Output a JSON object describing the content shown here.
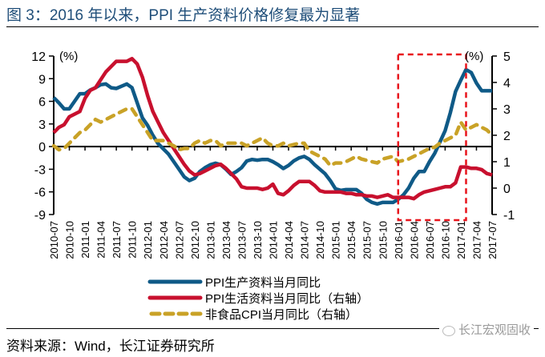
{
  "title": "图 3：2016 年以来，PPI 生产资料价格修复最为显著",
  "source": "资料来源：Wind，长江证券研究所",
  "watermark": "长江宏观固收",
  "colors": {
    "ppi_producer": "#0f5a87",
    "ppi_consumer": "#c8102e",
    "cpi_nonfood": "#c9a227",
    "highlight_box": "#e8141c",
    "title": "#1f4e79"
  },
  "chart_data": {
    "type": "line",
    "title": "图 3：2016 年以来，PPI 生产资料价格修复最为显著",
    "xlabel": "",
    "ylabel_left": "(%)",
    "ylabel_right": "(%)",
    "ylim_left": [
      -9,
      12
    ],
    "ylim_right": [
      -1,
      5
    ],
    "yticks_left": [
      "12",
      "9",
      "6",
      "3",
      "0",
      "-3",
      "-6",
      "-9"
    ],
    "yticks_left_values": [
      12,
      9,
      6,
      3,
      0,
      -3,
      -6,
      -9
    ],
    "yticks_right": [
      "5",
      "4",
      "3",
      "2",
      "1",
      "0",
      "-1"
    ],
    "yticks_right_values": [
      5,
      4,
      3,
      2,
      1,
      0,
      -1
    ],
    "x_start": "2010-07",
    "x_end": "2017-07",
    "x_frequency": "monthly",
    "xtick_labels": [
      "2010-07",
      "2010-10",
      "2011-01",
      "2011-04",
      "2011-07",
      "2011-10",
      "2012-01",
      "2012-04",
      "2012-07",
      "2012-10",
      "2013-01",
      "2013-04",
      "2013-07",
      "2013-10",
      "2014-01",
      "2014-04",
      "2014-07",
      "2014-10",
      "2015-01",
      "2015-04",
      "2015-07",
      "2015-10",
      "2016-01",
      "2016-04",
      "2016-07",
      "2016-10",
      "2017-01",
      "2017-04",
      "2017-07"
    ],
    "highlight_range": [
      "2016-01",
      "2017-02"
    ],
    "legend_position": "bottom",
    "grid": false,
    "series": [
      {
        "name": "PPI生产资料当月同比",
        "axis": "left",
        "style": "solid",
        "values": [
          6.5,
          5.8,
          5.0,
          5.0,
          6.0,
          7.0,
          7.0,
          7.5,
          7.8,
          8.2,
          8.3,
          7.8,
          7.7,
          8.0,
          8.3,
          7.8,
          5.8,
          3.8,
          2.8,
          1.5,
          0.4,
          -0.3,
          -1.0,
          -2.0,
          -3.0,
          -4.0,
          -4.5,
          -4.2,
          -3.3,
          -2.8,
          -2.4,
          -2.2,
          -2.4,
          -3.0,
          -3.7,
          -3.3,
          -2.8,
          -1.9,
          -1.7,
          -1.8,
          -1.7,
          -1.7,
          -2.0,
          -2.4,
          -2.9,
          -2.5,
          -1.9,
          -1.5,
          -1.3,
          -1.7,
          -2.4,
          -3.0,
          -3.6,
          -4.5,
          -5.6,
          -5.8,
          -5.7,
          -5.7,
          -5.7,
          -6.2,
          -7.0,
          -7.4,
          -7.6,
          -7.4,
          -7.4,
          -7.4,
          -7.0,
          -6.4,
          -5.5,
          -4.2,
          -3.3,
          -3.3,
          -2.0,
          -0.9,
          0.6,
          2.1,
          4.5,
          7.3,
          8.8,
          10.2,
          9.8,
          8.4,
          7.4,
          7.4,
          7.4
        ]
      },
      {
        "name": "PPI生活资料当月同比（右轴）",
        "axis": "right",
        "style": "solid",
        "values": [
          2.1,
          2.3,
          2.4,
          2.7,
          2.8,
          2.9,
          3.4,
          3.7,
          3.8,
          4.1,
          4.4,
          4.6,
          4.8,
          4.8,
          4.8,
          4.9,
          4.7,
          4.2,
          3.5,
          2.9,
          2.5,
          2.1,
          1.8,
          1.5,
          1.2,
          0.9,
          0.65,
          0.5,
          0.55,
          0.65,
          0.75,
          0.85,
          0.9,
          0.75,
          0.55,
          0.35,
          0.05,
          0.0,
          0.0,
          0.0,
          -0.05,
          0.0,
          0.15,
          -0.2,
          -0.25,
          -0.1,
          0.1,
          0.25,
          0.25,
          0.25,
          0.1,
          -0.1,
          -0.15,
          -0.15,
          -0.15,
          -0.15,
          -0.2,
          -0.2,
          -0.25,
          -0.25,
          -0.3,
          -0.3,
          -0.35,
          -0.3,
          -0.25,
          -0.35,
          -0.35,
          -0.35,
          -0.35,
          -0.4,
          -0.25,
          -0.15,
          -0.1,
          -0.05,
          0.0,
          0.05,
          0.05,
          0.2,
          0.8,
          0.8,
          0.75,
          0.75,
          0.7,
          0.55,
          0.5
        ]
      },
      {
        "name": "非食品CPI当月同比（右轴）",
        "axis": "right",
        "style": "dashed",
        "values": [
          1.6,
          1.45,
          1.5,
          1.7,
          1.9,
          2.1,
          2.2,
          2.4,
          2.6,
          2.5,
          2.6,
          2.7,
          2.8,
          2.9,
          3.0,
          3.0,
          2.7,
          2.4,
          2.1,
          1.8,
          1.8,
          1.8,
          1.7,
          1.6,
          1.45,
          1.5,
          1.5,
          1.7,
          1.8,
          1.7,
          1.8,
          1.8,
          1.6,
          1.7,
          1.7,
          1.7,
          1.7,
          1.6,
          1.7,
          1.8,
          1.9,
          1.7,
          1.6,
          1.6,
          1.7,
          1.6,
          1.65,
          1.7,
          1.7,
          1.4,
          1.3,
          1.2,
          1.1,
          0.85,
          0.95,
          0.95,
          1.0,
          1.1,
          1.2,
          1.1,
          1.05,
          1.0,
          0.95,
          1.1,
          1.15,
          1.2,
          1.0,
          1.05,
          1.1,
          1.2,
          1.3,
          1.4,
          1.5,
          1.55,
          1.7,
          1.8,
          1.9,
          2.0,
          2.5,
          2.2,
          2.3,
          2.4,
          2.3,
          2.2,
          2.0
        ]
      }
    ],
    "legend": [
      "PPI生产资料当月同比",
      "PPI生活资料当月同比（右轴）",
      "非食品CPI当月同比（右轴）"
    ]
  }
}
